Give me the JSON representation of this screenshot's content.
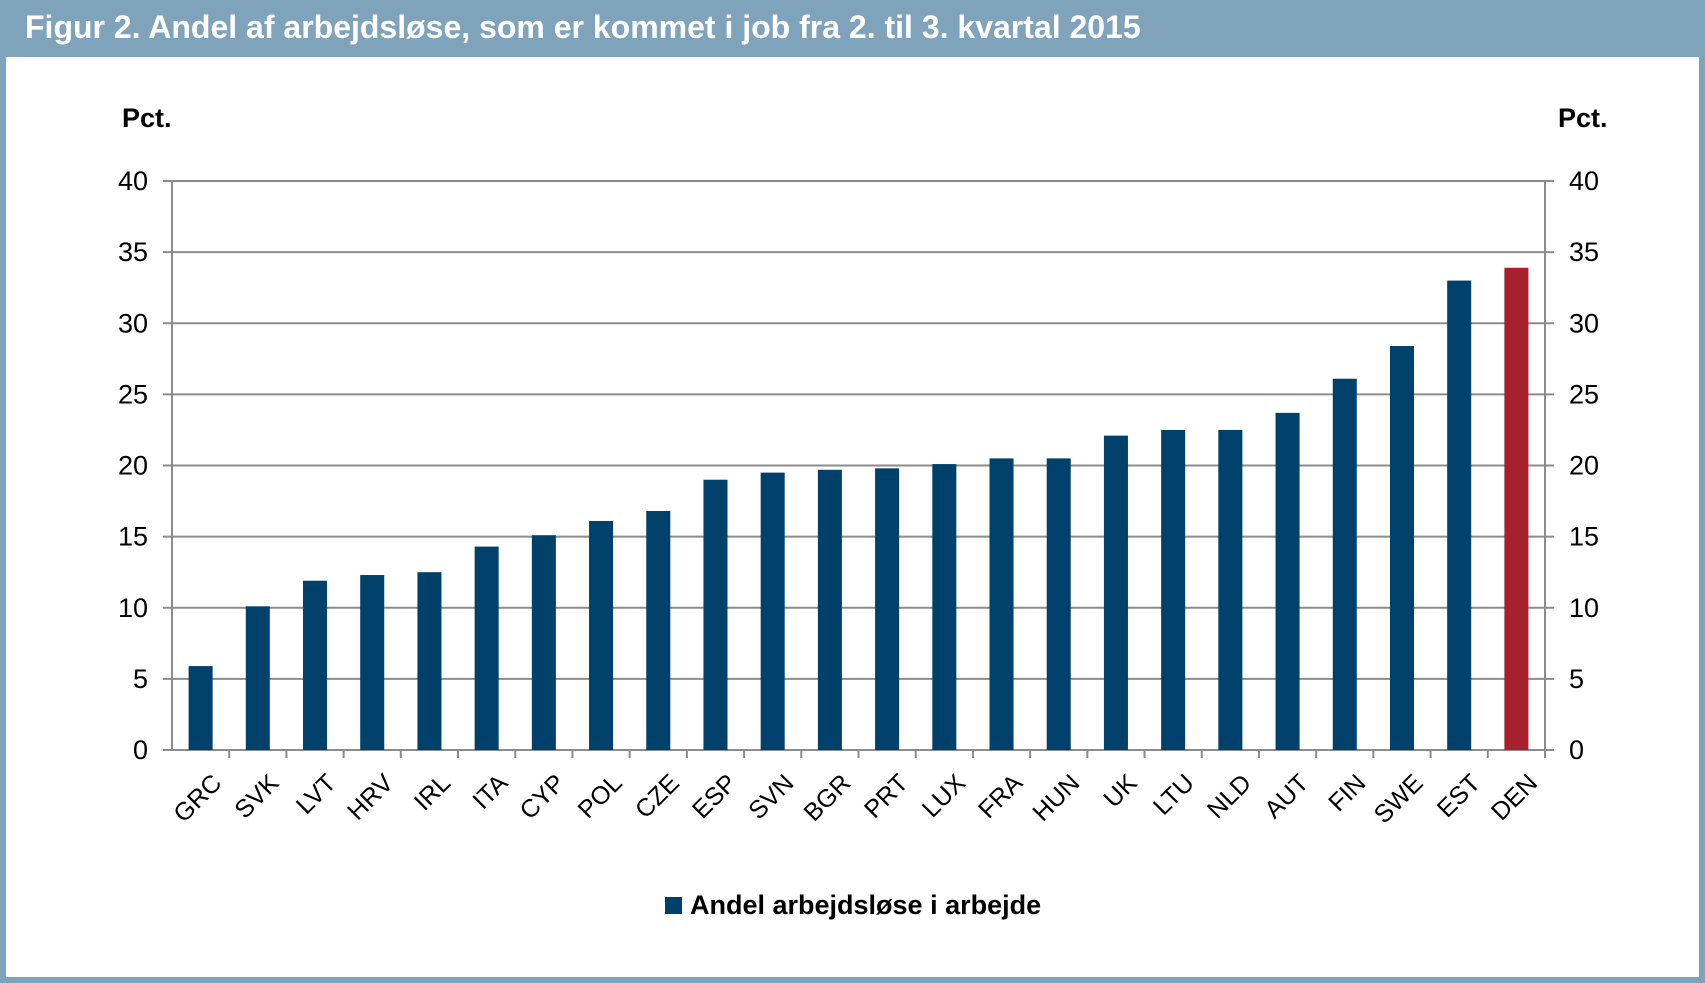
{
  "figure": {
    "title": "Figur 2. Andel af arbejdsløse, som er kommet i job fra 2. til 3. kvartal 2015"
  },
  "colors": {
    "header": "#7fa3ba",
    "bar": "#00416b",
    "highlight_bar": "#a6212b",
    "grid": "#8c8c8c"
  },
  "chart_data": {
    "type": "bar",
    "title": "Figur 2. Andel af arbejdsløse, som er kommet i job fra 2. til 3. kvartal 2015",
    "ylabel_left": "Pct.",
    "ylabel_right": "Pct.",
    "xlabel": "",
    "ylim": [
      0,
      40
    ],
    "yticks": [
      "0",
      "5",
      "10",
      "15",
      "20",
      "25",
      "30",
      "35",
      "40"
    ],
    "grid": true,
    "legend_position": "bottom",
    "categories": [
      "GRC",
      "SVK",
      "LVT",
      "HRV",
      "IRL",
      "ITA",
      "CYP",
      "POL",
      "CZE",
      "ESP",
      "SVN",
      "BGR",
      "PRT",
      "LUX",
      "FRA",
      "HUN",
      "UK",
      "LTU",
      "NLD",
      "AUT",
      "FIN",
      "SWE",
      "EST",
      "DEN"
    ],
    "series": [
      {
        "name": "Andel arbejdsløse i arbejde",
        "values": [
          5.9,
          10.1,
          11.9,
          12.3,
          12.5,
          14.3,
          15.1,
          16.1,
          16.8,
          19.0,
          19.5,
          19.7,
          19.8,
          20.1,
          20.5,
          20.5,
          22.1,
          22.5,
          22.5,
          23.7,
          26.1,
          28.4,
          33.0,
          33.9
        ]
      }
    ],
    "highlight_category": "DEN"
  }
}
